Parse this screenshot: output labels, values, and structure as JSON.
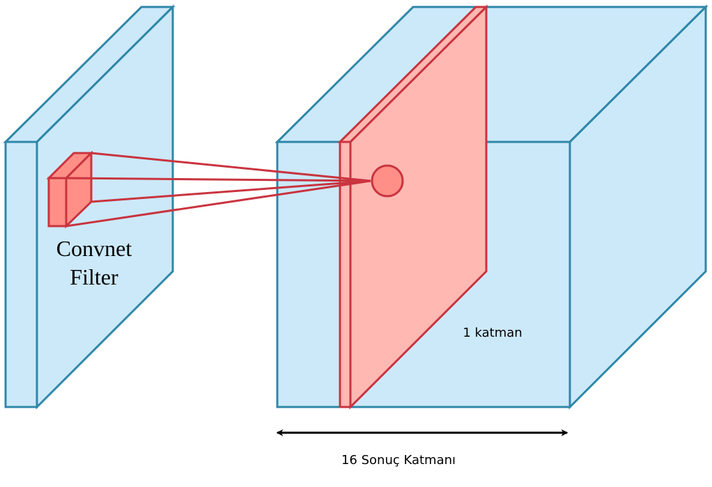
{
  "labels": {
    "filter_line1": "Convnet",
    "filter_line2": "Filter",
    "single_layer": "1 katman",
    "result_layers": "16 Sonuç Katmanı"
  },
  "colors": {
    "volume_fill": "#cce9fa",
    "volume_stroke": "#2f87a8",
    "filter_fill": "#ff8f87",
    "slice_fill": "#ffb8b2",
    "red_stroke": "#c9343f",
    "arrow": "#000000"
  }
}
